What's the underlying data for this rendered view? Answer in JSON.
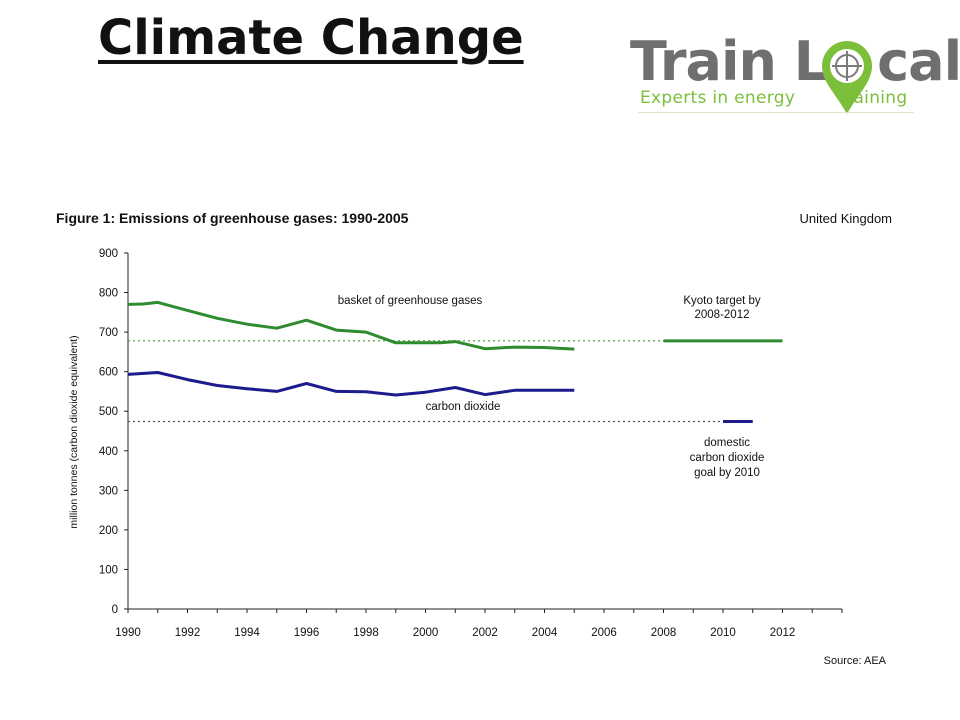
{
  "slide": {
    "title": "Climate Change"
  },
  "logo": {
    "word_left": "Train L",
    "word_right": "cal",
    "tagline_left": "Experts in energy",
    "tagline_right": "training"
  },
  "chart_data": {
    "type": "line",
    "title": "Figure 1: Emissions of greenhouse gases: 1990-2005",
    "region": "United Kingdom",
    "source": "Source: AEA",
    "ylabel": "million tonnes (carbon dioxide equivalent)",
    "xlabel": "",
    "xlim": [
      1990,
      2014
    ],
    "ylim": [
      0,
      900
    ],
    "x_ticks": [
      1990,
      1992,
      1994,
      1996,
      1998,
      2000,
      2002,
      2004,
      2006,
      2008,
      2010,
      2012
    ],
    "y_ticks": [
      0,
      100,
      200,
      300,
      400,
      500,
      600,
      700,
      800,
      900
    ],
    "grid": false,
    "colors": {
      "ghg": "#2e8b2e",
      "co2": "#1c1c8c",
      "target_line": "#3a9a3a",
      "goal_line": "#555555"
    },
    "series": [
      {
        "name": "basket of greenhouse gases",
        "x": [
          1990,
          1990.5,
          1991,
          1992,
          1993,
          1994,
          1995,
          1996,
          1997,
          1998,
          1999,
          2000,
          2000.5,
          2001,
          2002,
          2003,
          2004,
          2005
        ],
        "y": [
          770,
          771,
          775,
          755,
          735,
          720,
          710,
          730,
          705,
          700,
          673,
          673,
          673,
          676,
          658,
          662,
          661,
          657
        ]
      },
      {
        "name": "carbon dioxide",
        "x": [
          1990,
          1991,
          1992,
          1993,
          1994,
          1995,
          1996,
          1997,
          1998,
          1999,
          2000,
          2001,
          2002,
          2003,
          2004,
          2005
        ],
        "y": [
          593,
          598,
          580,
          565,
          557,
          550,
          570,
          550,
          549,
          541,
          548,
          560,
          542,
          553,
          553,
          553
        ]
      }
    ],
    "reference_lines": [
      {
        "label": "Kyoto target by 2008-2012",
        "label_lines": [
          "Kyoto target by",
          "2008-2012"
        ],
        "y": 678,
        "dotted_from": 1990,
        "dotted_to": 2008,
        "solid_from": 2008,
        "solid_to": 2012
      },
      {
        "label": "domestic carbon dioxide goal by 2010",
        "label_lines": [
          "domestic",
          "carbon dioxide",
          "goal by 2010"
        ],
        "y": 474,
        "dotted_from": 1990,
        "dotted_to": 2010,
        "solid_from": 2010,
        "solid_to": 2011
      }
    ]
  }
}
